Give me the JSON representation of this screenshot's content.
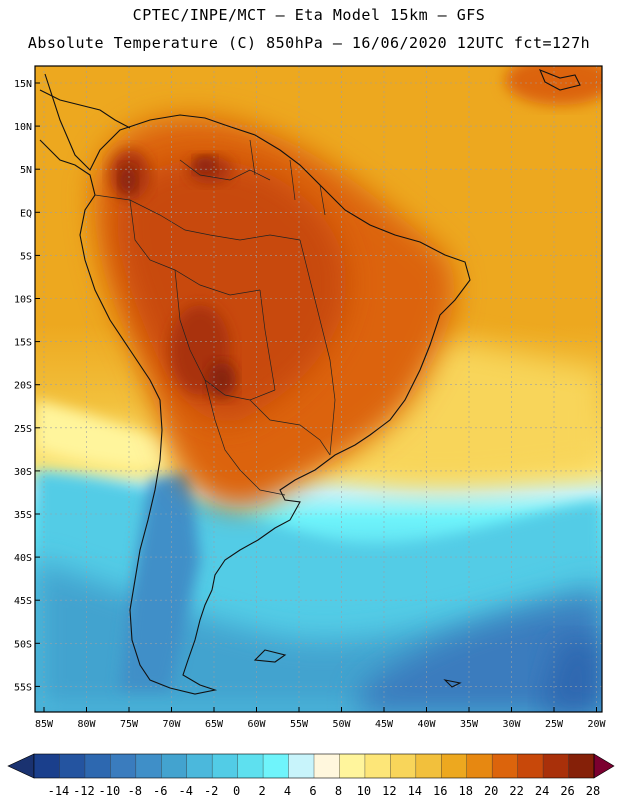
{
  "header": {
    "line1": "CPTEC/INPE/MCT –  Eta Model 15km – GFS",
    "line2": "Absolute Temperature (C) 850hPa – 16/06/2020 12UTC fct=127h"
  },
  "map": {
    "lat_labels": [
      "15N",
      "10N",
      "5N",
      "EQ",
      "5S",
      "10S",
      "15S",
      "20S",
      "25S",
      "30S",
      "35S",
      "40S",
      "45S",
      "50S",
      "55S"
    ],
    "lon_labels": [
      "85W",
      "80W",
      "75W",
      "70W",
      "65W",
      "60W",
      "55W",
      "50W",
      "45W",
      "40W",
      "35W",
      "30W",
      "25W",
      "20W"
    ],
    "field": "temperature_850hPa",
    "units": "C"
  },
  "colorbar": {
    "labels": [
      "-14",
      "-12",
      "-10",
      "-8",
      "-6",
      "-4",
      "-2",
      "0",
      "2",
      "4",
      "6",
      "8",
      "10",
      "12",
      "14",
      "16",
      "18",
      "20",
      "22",
      "24",
      "26",
      "28"
    ],
    "colors": [
      "#1a3f8c",
      "#2454a0",
      "#2d68b0",
      "#3a7cbe",
      "#3f8fc8",
      "#43a3cf",
      "#4bb8dc",
      "#52cce6",
      "#5ee0ef",
      "#6ff4fb",
      "#c8f4fb",
      "#fff7dd",
      "#fff59c",
      "#fde678",
      "#f8d55a",
      "#f2c03c",
      "#eda81f",
      "#e78811",
      "#dc640c",
      "#c8480a",
      "#a9300a",
      "#852008"
    ],
    "under_color": "#1a3270",
    "over_color": "#7b0030"
  }
}
